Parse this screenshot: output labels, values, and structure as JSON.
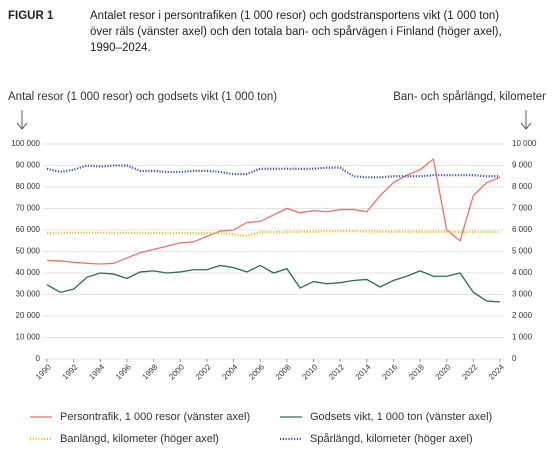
{
  "figure_label": "FIGUR 1",
  "subtitle": "Antalet resor i persontrafiken (1 000 resor) och godstransportens vikt (1 000 ton) över räls (vänster axel) och den totala ban- och spårvägen i Finland (höger axel), 1990–2024.",
  "chart_data": {
    "type": "line",
    "ylabel": "Antal resor (1 000 resor) och godsets vikt (1 000 ton)",
    "y2label": "Ban- och spårlängd, kilometer",
    "x": [
      1990,
      1991,
      1992,
      1993,
      1994,
      1995,
      1996,
      1997,
      1998,
      1999,
      2000,
      2001,
      2002,
      2003,
      2004,
      2005,
      2006,
      2007,
      2008,
      2009,
      2010,
      2011,
      2012,
      2013,
      2014,
      2015,
      2016,
      2017,
      2018,
      2019,
      2020,
      2021,
      2022,
      2023,
      2024
    ],
    "xlim": [
      1990,
      2024
    ],
    "xticks": [
      1990,
      1992,
      1994,
      1996,
      1998,
      2000,
      2002,
      2004,
      2006,
      2008,
      2010,
      2012,
      2014,
      2016,
      2018,
      2020,
      2022,
      2024
    ],
    "ylim": [
      0,
      100000
    ],
    "yticks": [
      0,
      {
        "value": 10000,
        "label": "10 000"
      },
      {
        "value": 20000,
        "label": "20 000"
      },
      {
        "value": 30000,
        "label": "30 000"
      },
      {
        "value": 40000,
        "label": "40 000"
      },
      {
        "value": 50000,
        "label": "50 000"
      },
      {
        "value": 60000,
        "label": "60 000"
      },
      {
        "value": 70000,
        "label": "70 000"
      },
      {
        "value": 80000,
        "label": "80 000"
      },
      {
        "value": 90000,
        "label": "90 000"
      },
      {
        "value": 100000,
        "label": "100 000"
      }
    ],
    "y2lim": [
      0,
      10000
    ],
    "y2ticks": [
      0,
      {
        "value": 1000,
        "label": "1 000"
      },
      {
        "value": 2000,
        "label": "2 000"
      },
      {
        "value": 3000,
        "label": "3 000"
      },
      {
        "value": 4000,
        "label": "4 000"
      },
      {
        "value": 5000,
        "label": "5 000"
      },
      {
        "value": 6000,
        "label": "6 000"
      },
      {
        "value": 7000,
        "label": "7 000"
      },
      {
        "value": 8000,
        "label": "8 000"
      },
      {
        "value": 9000,
        "label": "9 000"
      },
      {
        "value": 10000,
        "label": "10 000"
      }
    ],
    "grid": true,
    "series": [
      {
        "name": "Persontrafik, 1 000 resor (vänster axel)",
        "color": "#e8736b",
        "dash": false,
        "values": [
          45800,
          45600,
          45000,
          44500,
          44200,
          44500,
          47000,
          49500,
          51000,
          52500,
          54000,
          54500,
          57000,
          59500,
          60000,
          63500,
          64000,
          67000,
          70000,
          68000,
          69000,
          68500,
          69500,
          69500,
          68500,
          76000,
          82000,
          85500,
          88000,
          93000,
          60000,
          55000,
          76000,
          82000,
          84500
        ]
      },
      {
        "name": "Godsets vikt, 1 000 ton (vänster axel)",
        "color": "#2e6b5e",
        "dash": false,
        "values": [
          34500,
          31000,
          32500,
          38000,
          40000,
          39500,
          37500,
          40500,
          41000,
          40000,
          40500,
          41500,
          41500,
          43500,
          42500,
          40500,
          43500,
          40000,
          42000,
          33000,
          36000,
          35000,
          35500,
          36500,
          37000,
          33500,
          36500,
          38500,
          41000,
          38500,
          38500,
          40000,
          31000,
          27000,
          26500
        ]
      },
      {
        "name": "Banlängd, kilometer (höger axel)",
        "color": "#e8c02a",
        "dash": true,
        "axis": "y2",
        "values": [
          5850,
          5870,
          5870,
          5870,
          5870,
          5870,
          5870,
          5860,
          5860,
          5860,
          5860,
          5850,
          5850,
          5850,
          5800,
          5730,
          5900,
          5900,
          5900,
          5920,
          5920,
          5940,
          5940,
          5940,
          5940,
          5920,
          5920,
          5920,
          5920,
          5920,
          5920,
          5910,
          5910,
          5910,
          5910
        ]
      },
      {
        "name": "Spårlängd, kilometer (höger axel)",
        "color": "#3d4fa8",
        "dash": true,
        "axis": "y2",
        "values": [
          8850,
          8700,
          8800,
          9000,
          8950,
          9000,
          9000,
          8750,
          8750,
          8700,
          8700,
          8750,
          8750,
          8700,
          8600,
          8600,
          8850,
          8850,
          8850,
          8850,
          8850,
          8900,
          8900,
          8500,
          8450,
          8450,
          8500,
          8500,
          8500,
          8550,
          8550,
          8550,
          8550,
          8500,
          8500
        ]
      }
    ]
  }
}
